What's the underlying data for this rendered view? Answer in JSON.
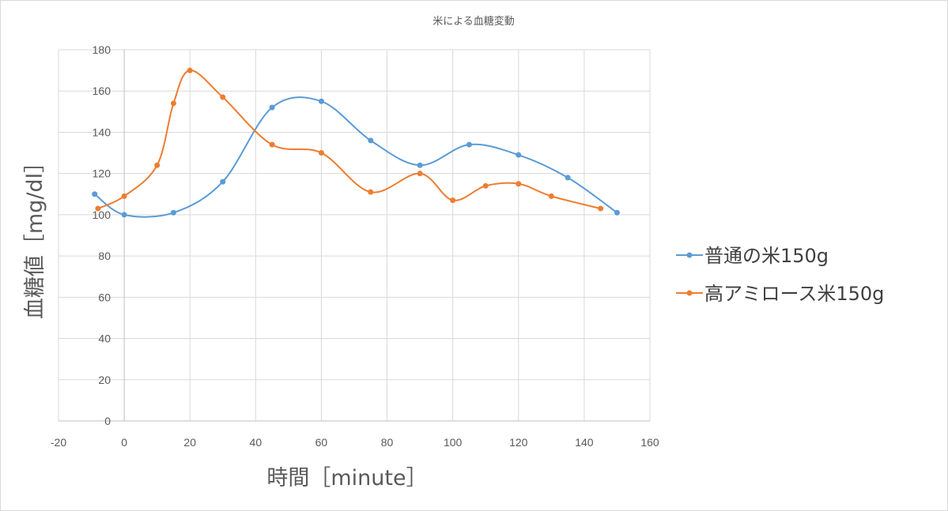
{
  "chart_data": {
    "type": "scatter",
    "title": "米による血糖変動",
    "xlabel": "時間［minute］",
    "ylabel": "血糖値［mg/dl］",
    "xlim": [
      -20,
      160
    ],
    "ylim": [
      0,
      180
    ],
    "xticks": [
      -20,
      0,
      20,
      40,
      60,
      80,
      100,
      120,
      140,
      160
    ],
    "yticks": [
      0,
      20,
      40,
      60,
      80,
      100,
      120,
      140,
      160,
      180
    ],
    "grid": true,
    "smooth_lines": true,
    "legend_position": "right",
    "series": [
      {
        "name": "普通の米150g",
        "color": "#5b9bd5",
        "x": [
          -9,
          0,
          15,
          30,
          45,
          60,
          75,
          90,
          105,
          120,
          135,
          150
        ],
        "y": [
          110,
          100,
          101,
          116,
          152,
          155,
          136,
          124,
          134,
          129,
          118,
          101
        ]
      },
      {
        "name": "高アミロース米150g",
        "color": "#ed7d31",
        "x": [
          -8,
          0,
          10,
          15,
          20,
          30,
          45,
          60,
          75,
          90,
          100,
          110,
          120,
          130,
          145
        ],
        "y": [
          103,
          109,
          124,
          154,
          170,
          157,
          134,
          130,
          111,
          120,
          107,
          114,
          115,
          109,
          103
        ]
      }
    ]
  }
}
